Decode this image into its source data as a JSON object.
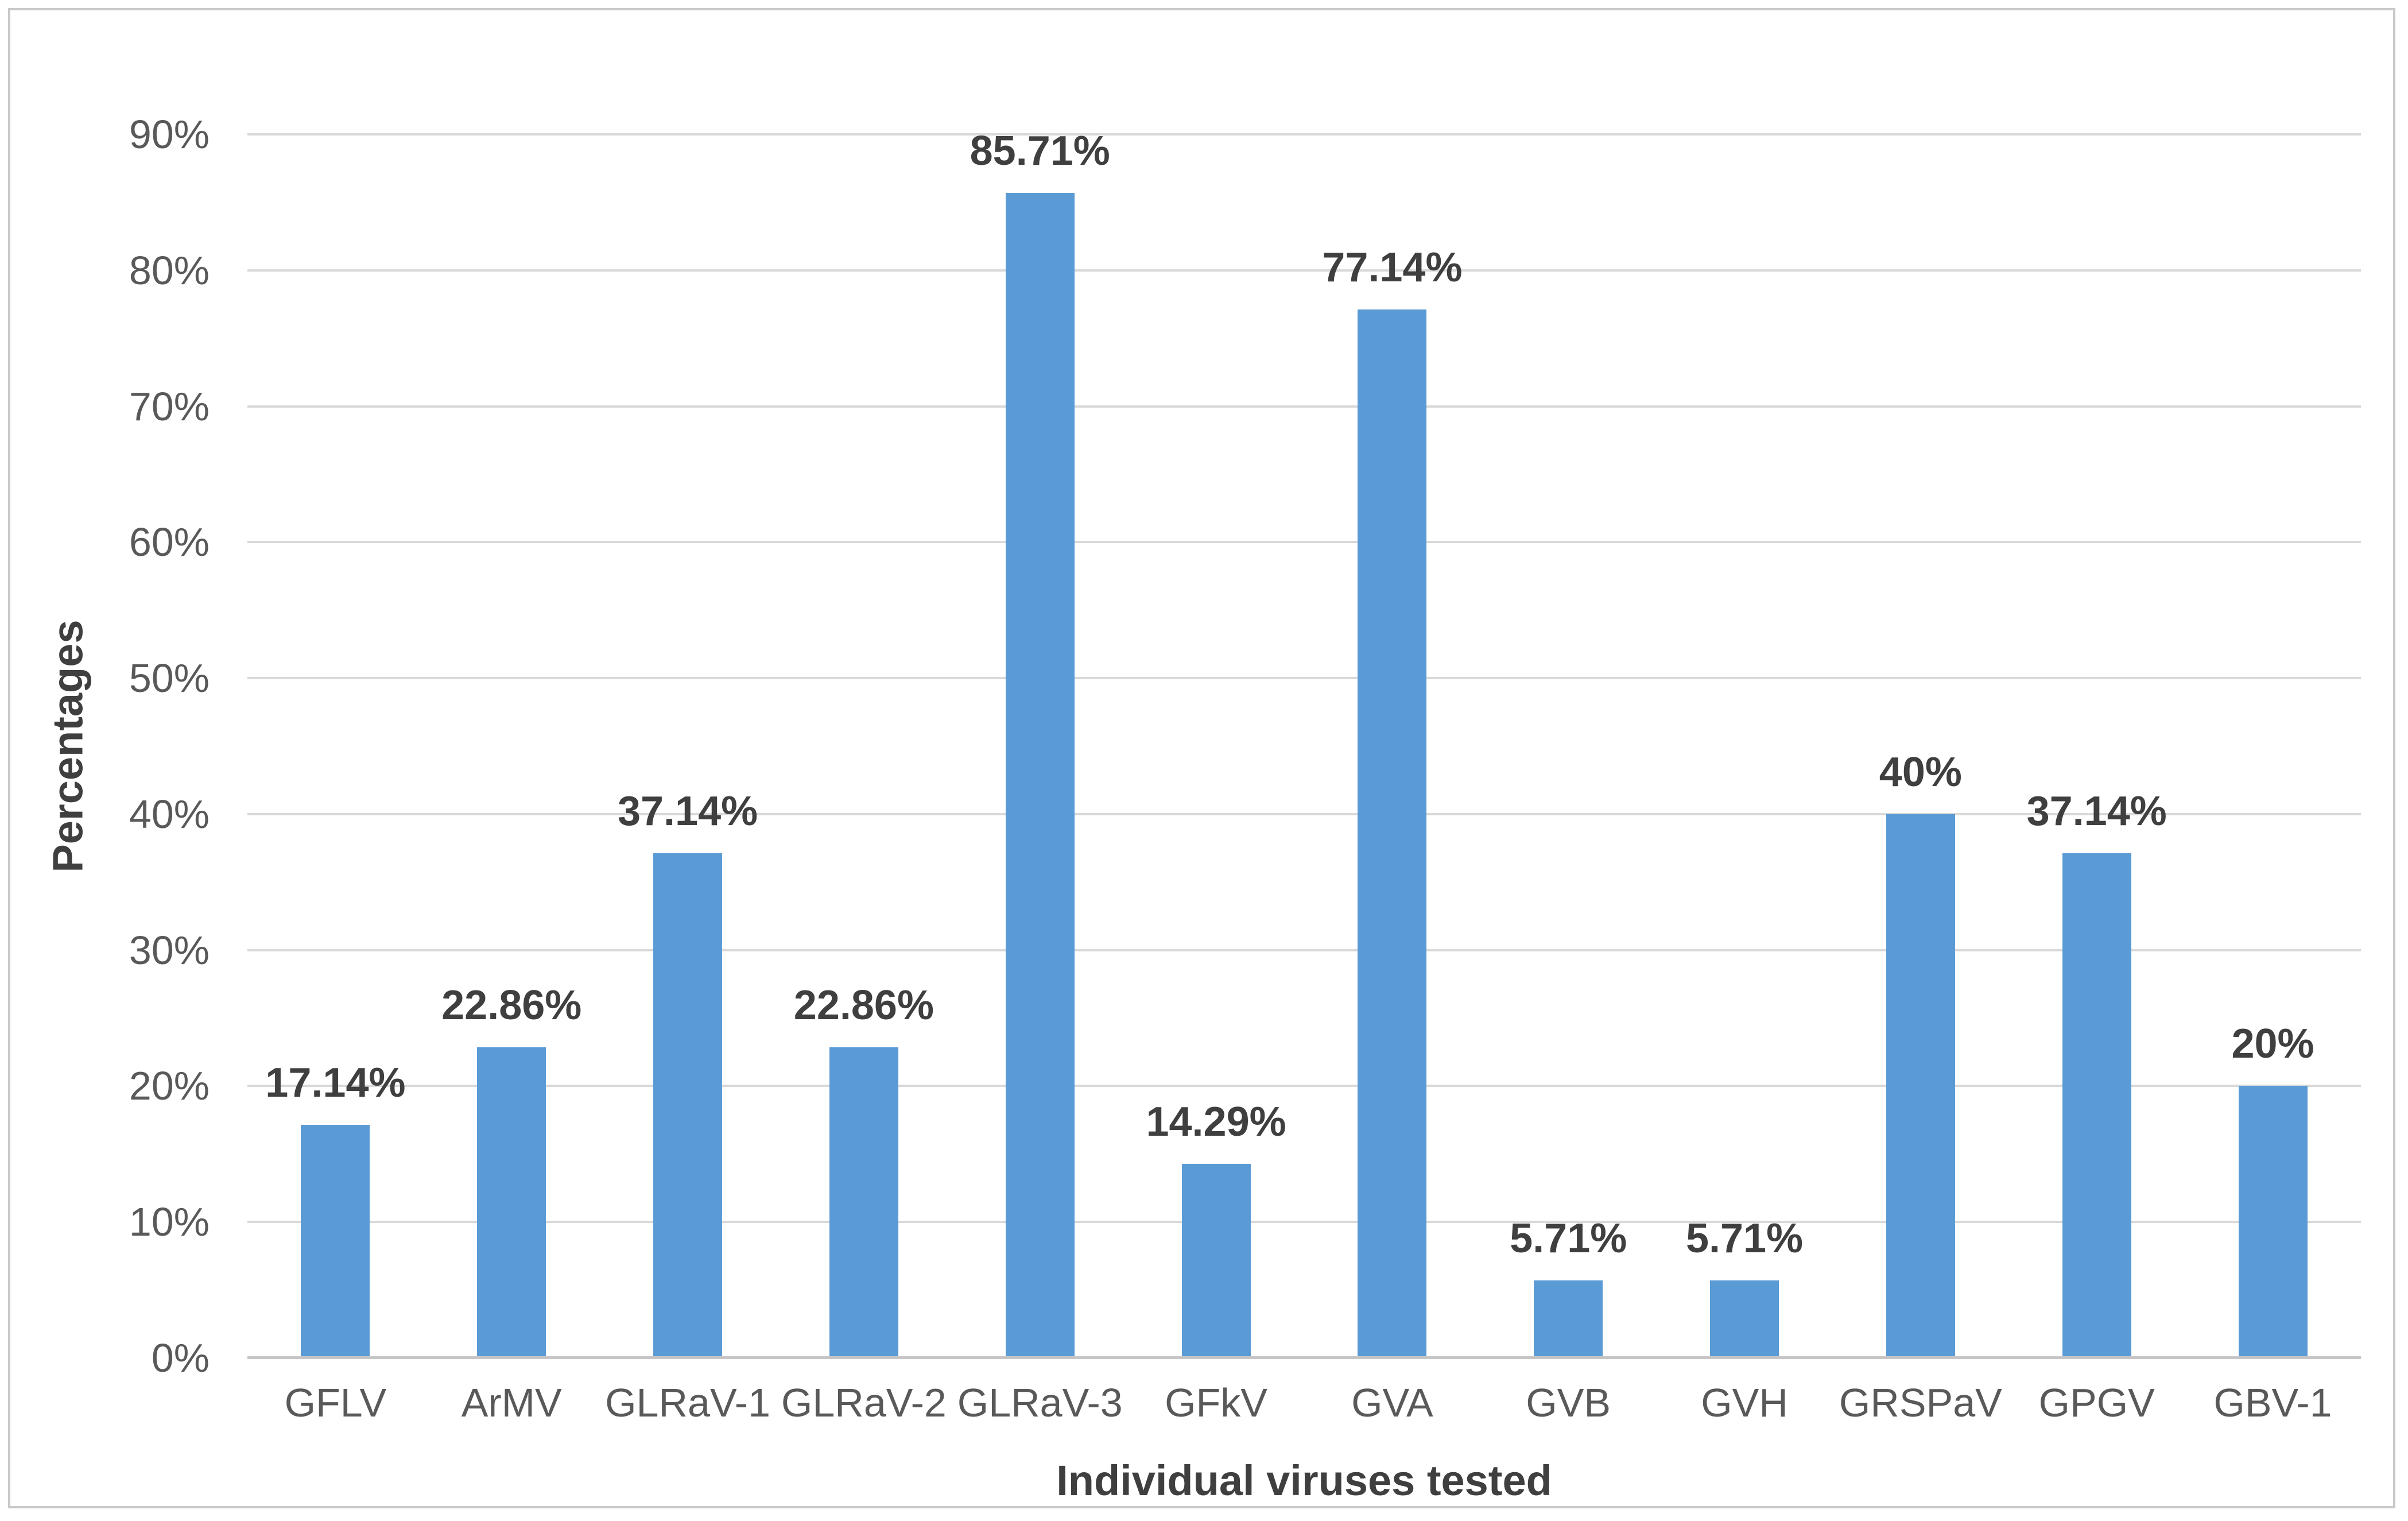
{
  "chart_data": {
    "type": "bar",
    "title": "",
    "xlabel": "Individual viruses tested",
    "ylabel": "Percentages",
    "categories": [
      "GFLV",
      "ArMV",
      "GLRaV-1",
      "GLRaV-2",
      "GLRaV-3",
      "GFkV",
      "GVA",
      "GVB",
      "GVH",
      "GRSPaV",
      "GPGV",
      "GBV-1"
    ],
    "values": [
      17.14,
      22.86,
      37.14,
      22.86,
      85.71,
      14.29,
      77.14,
      5.71,
      5.71,
      40,
      37.14,
      20
    ],
    "data_labels": [
      "17.14%",
      "22.86%",
      "37.14%",
      "22.86%",
      "85.71%",
      "14.29%",
      "77.14%",
      "5.71%",
      "5.71%",
      "40%",
      "37.14%",
      "20%"
    ],
    "y_ticks": [
      "0%",
      "10%",
      "20%",
      "30%",
      "40%",
      "50%",
      "60%",
      "70%",
      "80%",
      "90%"
    ],
    "ylim": [
      0,
      90
    ],
    "grid": true,
    "legend": false
  },
  "colors": {
    "bar": "#5B9BD5",
    "gridline": "#D9D9D9",
    "axis_line": "#C6C6C6",
    "tick_text": "#595959",
    "label_text": "#3F3F3F",
    "frame_border": "#C9C9C9",
    "background": "#FFFFFF"
  }
}
